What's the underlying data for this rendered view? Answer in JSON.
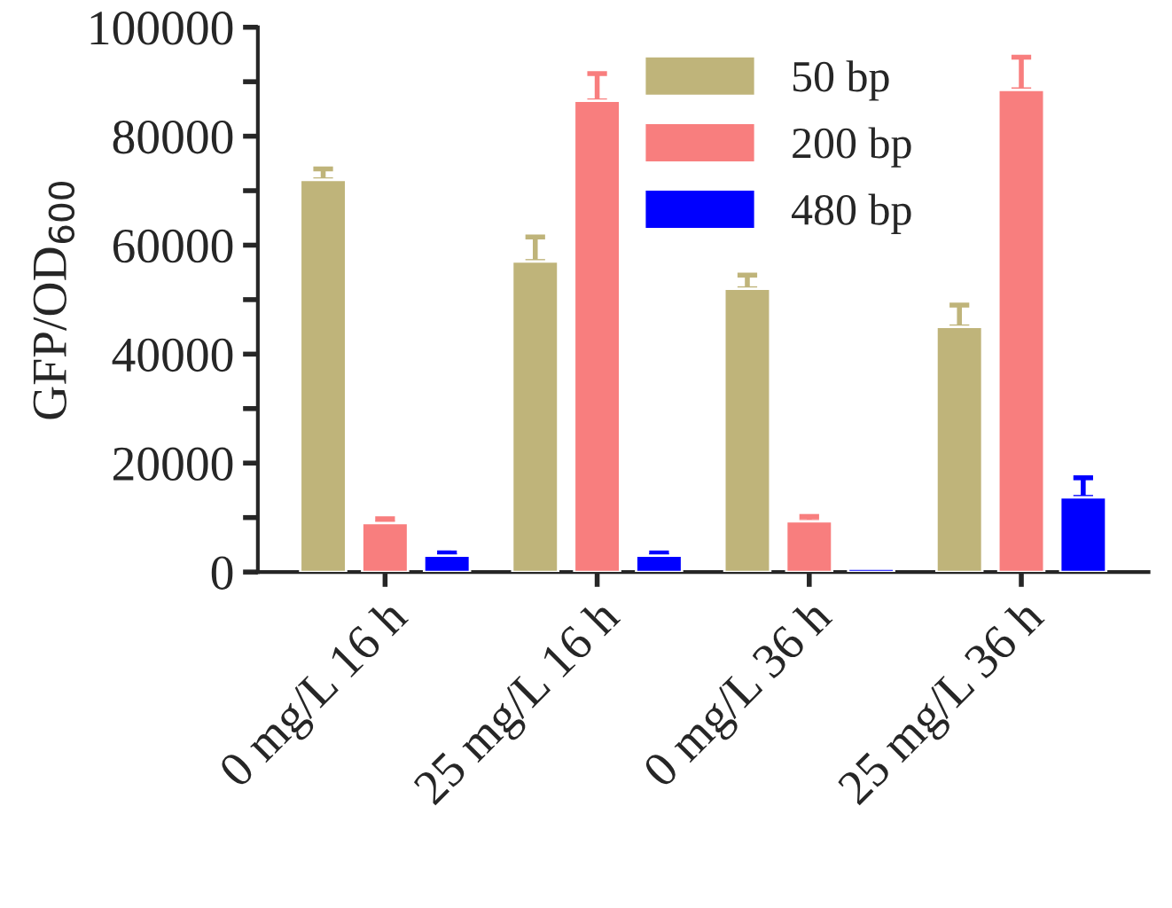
{
  "chart_data": {
    "type": "bar",
    "ylabel": "GFP/OD$_{600}$",
    "categories": [
      "0 mg/L 16 h",
      "25 mg/L 16 h",
      "0 mg/L 36 h",
      "25 mg/L 36 h"
    ],
    "series": [
      {
        "name": "50 bp",
        "color": "#bfb47a",
        "values": [
          72000,
          57000,
          52000,
          45000
        ],
        "errors": [
          [
            72000,
            74000
          ],
          [
            57000,
            61500
          ],
          [
            52000,
            54500
          ],
          [
            45000,
            49000
          ]
        ]
      },
      {
        "name": "200 bp",
        "color": "#f87e7e",
        "values": [
          9000,
          86500,
          9300,
          88500
        ],
        "errors": [
          [
            9000,
            9800
          ],
          [
            86500,
            91500
          ],
          [
            9300,
            10200
          ],
          [
            88500,
            94500
          ]
        ]
      },
      {
        "name": "480 bp",
        "color": "#0000ff",
        "values": [
          3000,
          3000,
          600,
          13700
        ],
        "errors": [
          [
            3000,
            3500
          ],
          [
            3000,
            3500
          ],
          null,
          [
            13700,
            17300
          ]
        ]
      }
    ],
    "ylim": [
      0,
      100000
    ],
    "yticks": [
      0,
      {
        "value": 10000,
        "label": null
      },
      20000,
      {
        "value": 30000,
        "label": null
      },
      40000,
      {
        "value": 50000,
        "label": null
      },
      60000,
      {
        "value": 70000,
        "label": null
      },
      80000,
      {
        "value": 90000,
        "label": null
      },
      100000
    ],
    "legend": "top right",
    "grid": false
  }
}
